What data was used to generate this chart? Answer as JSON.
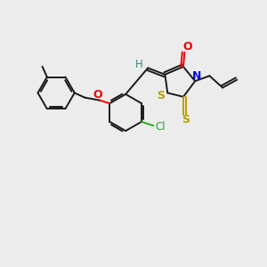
{
  "bg_color": "#ececec",
  "bond_color": "#1a1a1a",
  "S_color": "#b8a000",
  "N_color": "#0000ee",
  "O_color": "#ee0000",
  "Cl_color": "#22aa22",
  "H_color": "#3a8a8a",
  "figsize": [
    3.0,
    3.0
  ],
  "dpi": 100,
  "xlim": [
    0,
    10
  ],
  "ylim": [
    0,
    10
  ]
}
